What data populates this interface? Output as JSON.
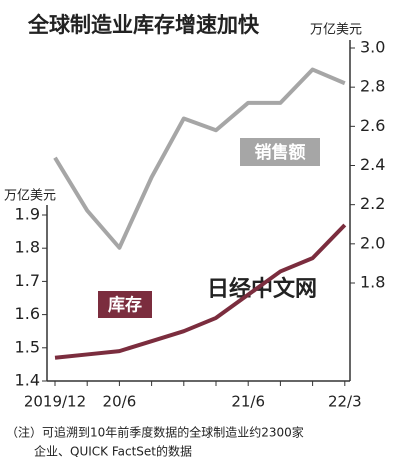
{
  "chart_data": {
    "type": "line",
    "title": "全球制造业库存增速加快",
    "y_unit": "万亿美元",
    "y2_unit": "万亿美元",
    "categories": [
      "2019/12",
      null,
      "20/6",
      null,
      null,
      null,
      "21/6",
      null,
      null,
      "22/3"
    ],
    "series": [
      {
        "name": "销售额",
        "color": "#a6a6a6",
        "axis": "y2",
        "values": [
          2.44,
          2.17,
          1.98,
          2.34,
          2.64,
          2.58,
          2.72,
          2.72,
          2.89,
          2.82
        ]
      },
      {
        "name": "库存",
        "color": "#7b2d3e",
        "values": [
          1.47,
          1.48,
          1.49,
          1.52,
          1.55,
          1.59,
          1.66,
          1.73,
          1.77,
          1.87
        ]
      }
    ],
    "ylim": [
      1.4,
      1.9
    ],
    "yticks": [
      1.4,
      1.5,
      1.6,
      1.7,
      1.8,
      1.9
    ],
    "y2lim": [
      1.8,
      3.0
    ],
    "y2ticks": [
      1.8,
      {
        "value": 2,
        "label": "2.0"
      },
      2.2,
      2.4,
      2.6,
      2.8,
      {
        "value": 3,
        "label": "3.0"
      }
    ],
    "grid": false,
    "watermark": "日经中文网",
    "footnote": [
      "（注）可追溯到10年前季度数据的全球制造业约2300家",
      "企业、QUICK FactSet的数据"
    ]
  }
}
